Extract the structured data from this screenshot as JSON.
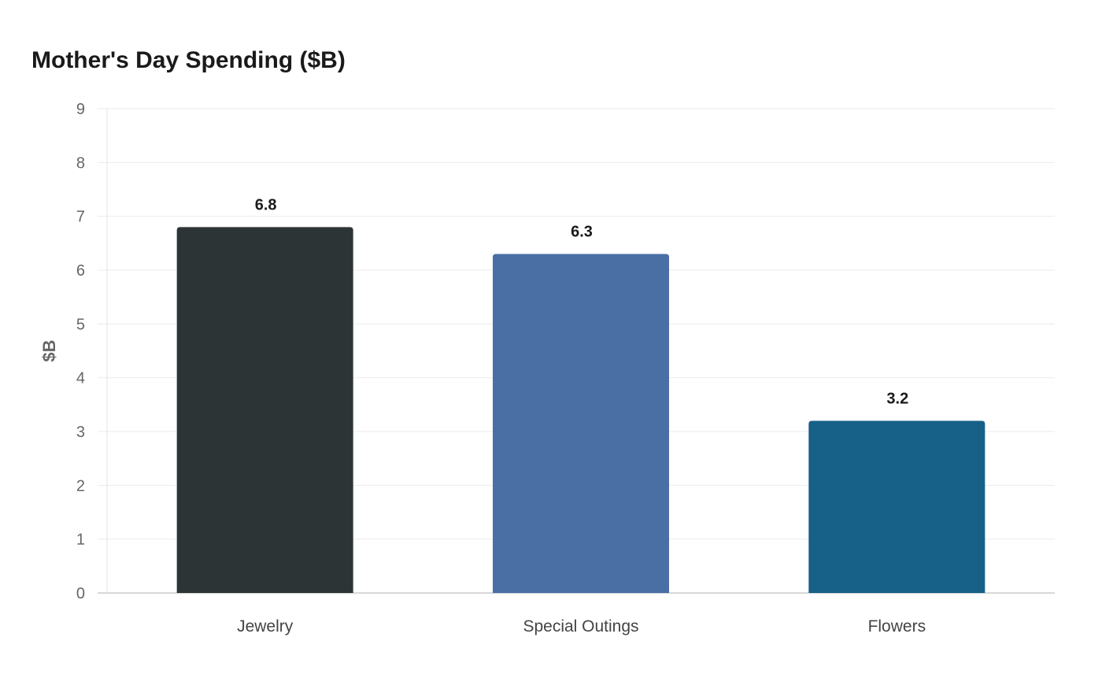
{
  "chart_data": {
    "type": "bar",
    "title": "Mother's Day Spending ($B)",
    "xlabel": "",
    "ylabel": "$B",
    "categories": [
      "Jewelry",
      "Special Outings",
      "Flowers"
    ],
    "values": [
      6.8,
      6.3,
      3.2
    ],
    "data_labels": [
      "6.8",
      "6.3",
      "3.2"
    ],
    "colors": [
      "#2d3436",
      "#4a6fa5",
      "#176087"
    ],
    "ylim": [
      0,
      9
    ],
    "yticks": [
      "0",
      "1",
      "2",
      "3",
      "4",
      "5",
      "6",
      "7",
      "8",
      "9"
    ],
    "grid": true,
    "legend": "none"
  }
}
